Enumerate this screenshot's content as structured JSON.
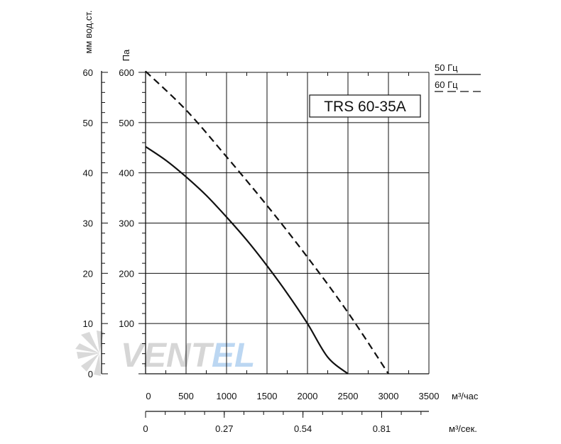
{
  "chart_data": {
    "type": "line",
    "model": "TRS 60-35A",
    "x_axis_primary": {
      "label": "м³/час",
      "ticks": [
        0,
        500,
        1000,
        1500,
        2000,
        2500,
        3000,
        3500
      ],
      "range": [
        0,
        3500
      ]
    },
    "x_axis_secondary": {
      "label": "м³/сек.",
      "ticks": [
        {
          "label": "0",
          "m3h": 0
        },
        {
          "label": "0.27",
          "m3h": 972
        },
        {
          "label": "0.54",
          "m3h": 1944
        },
        {
          "label": "0.81",
          "m3h": 2916
        }
      ]
    },
    "y_axis_pa": {
      "label": "Па",
      "ticks": [
        100,
        200,
        300,
        400,
        500,
        600
      ],
      "range": [
        0,
        600
      ]
    },
    "y_axis_mm": {
      "label": "мм вод.ст.",
      "ticks": [
        0,
        10,
        20,
        30,
        40,
        50,
        60
      ],
      "range": [
        0,
        60
      ]
    },
    "series": [
      {
        "name": "50 Гц",
        "style": "solid",
        "points": [
          [
            0,
            452
          ],
          [
            250,
            425
          ],
          [
            500,
            392
          ],
          [
            750,
            355
          ],
          [
            1000,
            312
          ],
          [
            1250,
            266
          ],
          [
            1500,
            215
          ],
          [
            1750,
            160
          ],
          [
            2000,
            100
          ],
          [
            2250,
            33
          ],
          [
            2500,
            0
          ]
        ]
      },
      {
        "name": "60 Гц",
        "style": "dashed",
        "points": [
          [
            0,
            602
          ],
          [
            500,
            525
          ],
          [
            1000,
            432
          ],
          [
            1500,
            335
          ],
          [
            2000,
            232
          ],
          [
            2500,
            122
          ],
          [
            3000,
            0
          ]
        ]
      }
    ],
    "grid": true,
    "legend_position": "top-right"
  },
  "legend": {
    "items": [
      {
        "label": "50 Гц",
        "style": "solid"
      },
      {
        "label": "60 Гц",
        "style": "dashed"
      }
    ]
  },
  "watermark": {
    "text_main": "VENT",
    "text_accent": "EL"
  },
  "colors": {
    "line": "#111111",
    "grid": "#111111",
    "watermark_gray": "#d6d6d6",
    "watermark_accent": "#bcd7f2"
  }
}
